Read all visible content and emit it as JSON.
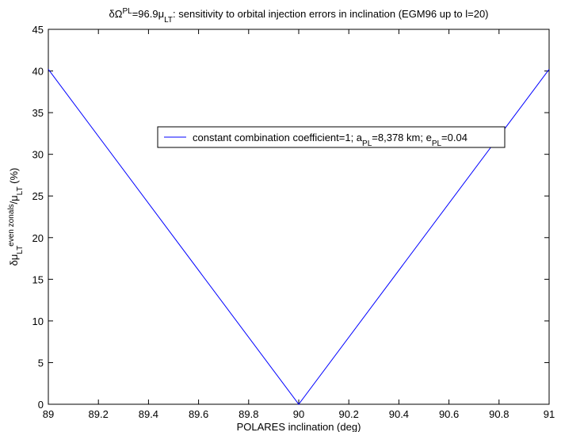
{
  "chart_data": {
    "type": "line",
    "title": [
      {
        "text": "δΩ"
      },
      {
        "text": "PL",
        "shift": "super"
      },
      {
        "text": "=96.9μ"
      },
      {
        "text": "LT",
        "shift": "sub"
      },
      {
        "text": ": sensitivity to orbital injection errors in inclination (EGM96 up to l=20)"
      }
    ],
    "x_label": [
      {
        "text": "POLARES inclination (deg)"
      }
    ],
    "y_label": [
      {
        "text": "δμ"
      },
      {
        "text": "LT",
        "shift": "sub"
      },
      {
        "text": "even zonals",
        "shift": "super"
      },
      {
        "text": "/μ"
      },
      {
        "text": "LT",
        "shift": "sub"
      },
      {
        "text": " (%)"
      }
    ],
    "x": [
      89,
      90,
      91
    ],
    "series": [
      {
        "name": [
          {
            "text": "constant combination coefficient=1; a"
          },
          {
            "text": "PL",
            "shift": "sub"
          },
          {
            "text": "=8,378 km; e"
          },
          {
            "text": "PL",
            "shift": "sub"
          },
          {
            "text": "=0.04"
          }
        ],
        "color": "#0000ff",
        "values": [
          40.2,
          0,
          40.2
        ]
      }
    ],
    "xlim": [
      89,
      91
    ],
    "xticks": [
      89,
      89.2,
      89.4,
      89.6,
      89.8,
      90,
      90.2,
      90.4,
      90.6,
      90.8,
      91
    ],
    "ylim": [
      0,
      45
    ],
    "yticks": [
      0,
      5,
      10,
      15,
      20,
      25,
      30,
      35,
      40,
      45
    ],
    "grid": false
  }
}
